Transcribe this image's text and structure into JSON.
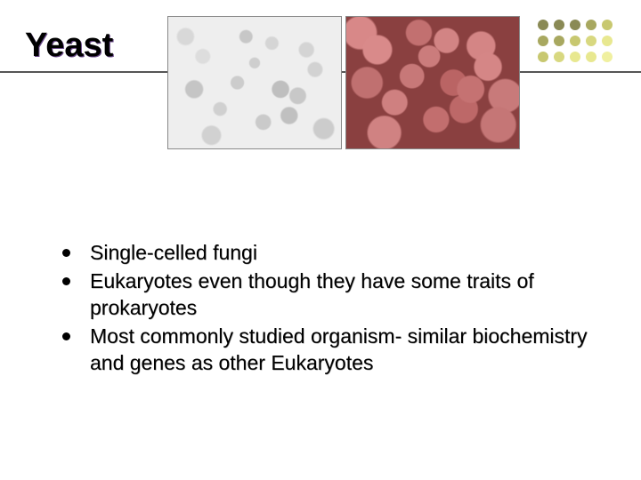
{
  "title": "Yeast",
  "dots": {
    "rows": 3,
    "cols": 5,
    "colors": [
      "#8a8a55",
      "#8a8a55",
      "#8a8a55",
      "#a8a860",
      "#c8c870",
      "#a8a860",
      "#a8a860",
      "#c8c870",
      "#d8d880",
      "#e8e890",
      "#c8c870",
      "#d8d880",
      "#e8e890",
      "#e8e890",
      "#f0f0a0"
    ]
  },
  "images": [
    {
      "name": "yeast-microscopy-gray",
      "style": "gray"
    },
    {
      "name": "yeast-sem-pink",
      "style": "pink"
    }
  ],
  "bullets": [
    "Single-celled fungi",
    "Eukaryotes even though they have some traits of prokaryotes",
    "Most commonly studied organism- similar biochemistry and genes as other Eukaryotes"
  ]
}
